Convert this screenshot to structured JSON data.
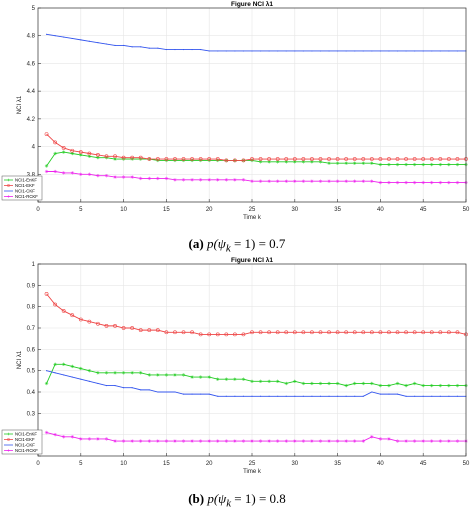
{
  "chart_data": [
    {
      "type": "line",
      "title": "Figure NCI λ1",
      "xlabel": "Time k",
      "ylabel": "NCI λ1",
      "xlim": [
        0,
        50
      ],
      "ylim": [
        3.6,
        5
      ],
      "xticks": [
        0,
        5,
        10,
        15,
        20,
        25,
        30,
        35,
        40,
        45,
        50
      ],
      "yticks": [
        3.6,
        3.8,
        4,
        4.2,
        4.4,
        4.6,
        4.8,
        5
      ],
      "ytick_labels": [
        "",
        "3.8",
        "4",
        "4.2",
        "4.4",
        "4.6",
        "4.8",
        "5"
      ],
      "grid": true,
      "legend_position": "bottom-left",
      "series": [
        {
          "name": "NCI1-EnKF",
          "color": "#22cc22",
          "marker": "asterisk",
          "values": [
            3.86,
            3.95,
            3.96,
            3.95,
            3.94,
            3.93,
            3.92,
            3.92,
            3.91,
            3.91,
            3.91,
            3.91,
            3.91,
            3.9,
            3.9,
            3.9,
            3.9,
            3.9,
            3.9,
            3.9,
            3.9,
            3.9,
            3.9,
            3.9,
            3.9,
            3.89,
            3.89,
            3.89,
            3.89,
            3.89,
            3.89,
            3.89,
            3.89,
            3.88,
            3.88,
            3.88,
            3.88,
            3.88,
            3.88,
            3.87,
            3.87,
            3.87,
            3.87,
            3.87,
            3.87,
            3.87,
            3.87,
            3.87,
            3.87,
            3.87
          ]
        },
        {
          "name": "NCI1-EKF",
          "color": "#ee4444",
          "marker": "circle",
          "values": [
            4.09,
            4.03,
            3.99,
            3.97,
            3.96,
            3.95,
            3.94,
            3.93,
            3.93,
            3.92,
            3.92,
            3.92,
            3.91,
            3.91,
            3.91,
            3.91,
            3.91,
            3.91,
            3.91,
            3.91,
            3.91,
            3.9,
            3.9,
            3.9,
            3.91,
            3.91,
            3.91,
            3.91,
            3.91,
            3.91,
            3.91,
            3.91,
            3.91,
            3.91,
            3.91,
            3.91,
            3.91,
            3.91,
            3.91,
            3.91,
            3.91,
            3.91,
            3.91,
            3.91,
            3.91,
            3.91,
            3.91,
            3.91,
            3.91,
            3.91
          ]
        },
        {
          "name": "NCI1-CKF",
          "color": "#3355ee",
          "marker": "none",
          "values": [
            4.81,
            4.8,
            4.79,
            4.78,
            4.77,
            4.76,
            4.75,
            4.74,
            4.73,
            4.73,
            4.72,
            4.72,
            4.71,
            4.71,
            4.7,
            4.7,
            4.7,
            4.7,
            4.7,
            4.69,
            4.69,
            4.69,
            4.69,
            4.69,
            4.69,
            4.69,
            4.69,
            4.69,
            4.69,
            4.69,
            4.69,
            4.69,
            4.69,
            4.69,
            4.69,
            4.69,
            4.69,
            4.69,
            4.69,
            4.69,
            4.69,
            4.69,
            4.69,
            4.69,
            4.69,
            4.69,
            4.69,
            4.69,
            4.69,
            4.69
          ]
        },
        {
          "name": "NCI1-RCKF",
          "color": "#ee22ee",
          "marker": "asterisk",
          "values": [
            3.82,
            3.82,
            3.81,
            3.81,
            3.8,
            3.8,
            3.79,
            3.79,
            3.78,
            3.78,
            3.78,
            3.77,
            3.77,
            3.77,
            3.77,
            3.76,
            3.76,
            3.76,
            3.76,
            3.76,
            3.76,
            3.76,
            3.76,
            3.76,
            3.75,
            3.75,
            3.75,
            3.75,
            3.75,
            3.75,
            3.75,
            3.75,
            3.75,
            3.75,
            3.75,
            3.75,
            3.75,
            3.75,
            3.75,
            3.74,
            3.74,
            3.74,
            3.74,
            3.74,
            3.74,
            3.74,
            3.74,
            3.74,
            3.74,
            3.74
          ]
        }
      ]
    },
    {
      "type": "line",
      "title": "Figure NCI λ1",
      "xlabel": "Time k",
      "ylabel": "NCI λ1",
      "xlim": [
        0,
        50
      ],
      "ylim": [
        0.1,
        1
      ],
      "xticks": [
        0,
        5,
        10,
        15,
        20,
        25,
        30,
        35,
        40,
        45,
        50
      ],
      "yticks": [
        0.1,
        0.2,
        0.3,
        0.4,
        0.5,
        0.6,
        0.7,
        0.8,
        0.9,
        1
      ],
      "ytick_labels": [
        "",
        "0.2",
        "0.3",
        "0.4",
        "0.5",
        "0.6",
        "0.7",
        "0.8",
        "0.9",
        "1"
      ],
      "grid": true,
      "legend_position": "bottom-left",
      "series": [
        {
          "name": "NCI1-EnKF",
          "color": "#22cc22",
          "marker": "asterisk",
          "values": [
            0.44,
            0.53,
            0.53,
            0.52,
            0.51,
            0.5,
            0.49,
            0.49,
            0.49,
            0.49,
            0.49,
            0.49,
            0.48,
            0.48,
            0.48,
            0.48,
            0.48,
            0.47,
            0.47,
            0.47,
            0.46,
            0.46,
            0.46,
            0.46,
            0.45,
            0.45,
            0.45,
            0.45,
            0.44,
            0.45,
            0.44,
            0.44,
            0.44,
            0.44,
            0.44,
            0.43,
            0.44,
            0.44,
            0.44,
            0.43,
            0.43,
            0.44,
            0.43,
            0.44,
            0.43,
            0.43,
            0.43,
            0.43,
            0.43,
            0.43
          ]
        },
        {
          "name": "NCI1-EKF",
          "color": "#ee4444",
          "marker": "circle",
          "values": [
            0.86,
            0.81,
            0.78,
            0.76,
            0.74,
            0.73,
            0.72,
            0.71,
            0.71,
            0.7,
            0.7,
            0.69,
            0.69,
            0.69,
            0.68,
            0.68,
            0.68,
            0.68,
            0.67,
            0.67,
            0.67,
            0.67,
            0.67,
            0.67,
            0.68,
            0.68,
            0.68,
            0.68,
            0.68,
            0.68,
            0.68,
            0.68,
            0.68,
            0.68,
            0.68,
            0.68,
            0.68,
            0.68,
            0.68,
            0.68,
            0.68,
            0.68,
            0.68,
            0.68,
            0.68,
            0.68,
            0.68,
            0.68,
            0.68,
            0.67
          ]
        },
        {
          "name": "NCI1-CKF",
          "color": "#3355ee",
          "marker": "none",
          "values": [
            0.5,
            0.49,
            0.48,
            0.47,
            0.46,
            0.45,
            0.44,
            0.43,
            0.43,
            0.42,
            0.42,
            0.41,
            0.41,
            0.4,
            0.4,
            0.4,
            0.39,
            0.39,
            0.39,
            0.39,
            0.38,
            0.38,
            0.38,
            0.38,
            0.38,
            0.38,
            0.38,
            0.38,
            0.38,
            0.38,
            0.38,
            0.38,
            0.38,
            0.38,
            0.38,
            0.38,
            0.38,
            0.38,
            0.4,
            0.39,
            0.39,
            0.39,
            0.38,
            0.38,
            0.38,
            0.38,
            0.38,
            0.38,
            0.38,
            0.38
          ]
        },
        {
          "name": "NCI1-RCKF",
          "color": "#ee22ee",
          "marker": "asterisk",
          "values": [
            0.21,
            0.2,
            0.19,
            0.19,
            0.18,
            0.18,
            0.18,
            0.18,
            0.17,
            0.17,
            0.17,
            0.17,
            0.17,
            0.17,
            0.17,
            0.17,
            0.17,
            0.17,
            0.17,
            0.17,
            0.17,
            0.17,
            0.17,
            0.17,
            0.17,
            0.17,
            0.17,
            0.17,
            0.17,
            0.17,
            0.17,
            0.17,
            0.17,
            0.17,
            0.17,
            0.17,
            0.17,
            0.17,
            0.19,
            0.18,
            0.18,
            0.17,
            0.17,
            0.17,
            0.17,
            0.17,
            0.17,
            0.17,
            0.17,
            0.17
          ]
        }
      ]
    }
  ],
  "captions": [
    {
      "label": "(a)",
      "expr_lhs": "p(ψ",
      "expr_sub": "k",
      "expr_rhs": " = 1) = 0.7"
    },
    {
      "label": "(b)",
      "expr_lhs": "p(ψ",
      "expr_sub": "k",
      "expr_rhs": " = 1) = 0.8"
    }
  ]
}
